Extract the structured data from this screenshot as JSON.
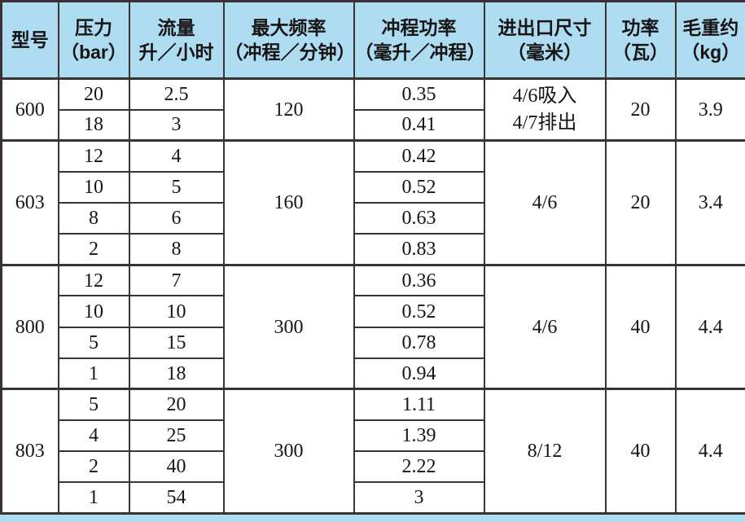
{
  "colors": {
    "header_bg": "#aedcf1",
    "page_bg": "#aedcf1",
    "cell_bg": "#ffffff",
    "border": "#3a3233",
    "text": "#161414"
  },
  "table": {
    "headers": [
      {
        "title": "型号",
        "sub": ""
      },
      {
        "title": "压力",
        "sub": "（bar）"
      },
      {
        "title": "流量",
        "sub": "升／小时"
      },
      {
        "title": "最大频率",
        "sub": "（冲程／分钟）"
      },
      {
        "title": "冲程功率",
        "sub": "（毫升／冲程）"
      },
      {
        "title": "进出口尺寸",
        "sub": "（毫米）"
      },
      {
        "title": "功率",
        "sub": "（瓦）"
      },
      {
        "title": "毛重约",
        "sub": "（kg）"
      }
    ],
    "groups": [
      {
        "model": "600",
        "rows": [
          {
            "pressure": "20",
            "flow": "2.5",
            "stroke_volume": "0.35"
          },
          {
            "pressure": "18",
            "flow": "3",
            "stroke_volume": "0.41"
          }
        ],
        "max_frequency": "120",
        "port_size_lines": [
          "4/6吸入",
          "4/7排出"
        ],
        "power": "20",
        "gross_weight": "3.9"
      },
      {
        "model": "603",
        "rows": [
          {
            "pressure": "12",
            "flow": "4",
            "stroke_volume": "0.42"
          },
          {
            "pressure": "10",
            "flow": "5",
            "stroke_volume": "0.52"
          },
          {
            "pressure": "8",
            "flow": "6",
            "stroke_volume": "0.63"
          },
          {
            "pressure": "2",
            "flow": "8",
            "stroke_volume": "0.83"
          }
        ],
        "max_frequency": "160",
        "port_size_lines": [
          "4/6"
        ],
        "power": "20",
        "gross_weight": "3.4"
      },
      {
        "model": "800",
        "rows": [
          {
            "pressure": "12",
            "flow": "7",
            "stroke_volume": "0.36"
          },
          {
            "pressure": "10",
            "flow": "10",
            "stroke_volume": "0.52"
          },
          {
            "pressure": "5",
            "flow": "15",
            "stroke_volume": "0.78"
          },
          {
            "pressure": "1",
            "flow": "18",
            "stroke_volume": "0.94"
          }
        ],
        "max_frequency": "300",
        "port_size_lines": [
          "4/6"
        ],
        "power": "40",
        "gross_weight": "4.4"
      },
      {
        "model": "803",
        "rows": [
          {
            "pressure": "5",
            "flow": "20",
            "stroke_volume": "1.11"
          },
          {
            "pressure": "4",
            "flow": "25",
            "stroke_volume": "1.39"
          },
          {
            "pressure": "2",
            "flow": "40",
            "stroke_volume": "2.22"
          },
          {
            "pressure": "1",
            "flow": "54",
            "stroke_volume": "3"
          }
        ],
        "max_frequency": "300",
        "port_size_lines": [
          "8/12"
        ],
        "power": "40",
        "gross_weight": "4.4"
      }
    ]
  }
}
